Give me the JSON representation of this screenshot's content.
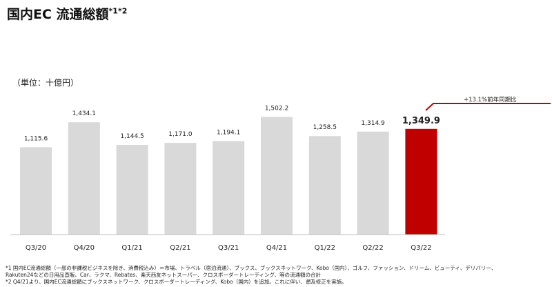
{
  "chart_data": {
    "type": "bar",
    "title": "国内EC 流通総額",
    "title_superscript": "*1*2",
    "unit_label": "（単位：十億円）",
    "categories": [
      "Q3/20",
      "Q4/20",
      "Q1/21",
      "Q2/21",
      "Q3/21",
      "Q4/21",
      "Q1/22",
      "Q2/22",
      "Q3/22"
    ],
    "values": [
      1115.6,
      1434.1,
      1144.5,
      1171.0,
      1194.1,
      1502.2,
      1258.5,
      1314.9,
      1349.9
    ],
    "value_labels": [
      "1,115.6",
      "1,434.1",
      "1,144.5",
      "1,171.0",
      "1,194.1",
      "1,502.2",
      "1,258.5",
      "1,314.9",
      "1,349.9"
    ],
    "highlight_index": 8,
    "annotation": "+13.1%前年同期比",
    "colors": {
      "bar": "#d9d9d9",
      "highlight": "#c00000",
      "annotation_line": "#c00000"
    },
    "grid": false
  },
  "footnotes": [
    "*1 国内EC流通総額（一部の非課税ビジネスを除き、消費税込み）＝市場、トラベル（宿泊流通）、ブックス、ブックスネットワーク、Kobo（国内）、ゴルフ、ファッション、ドリーム、ビューティ、デリバリー、",
    "Rakuten24などの日用品直販、Car、ラクマ、Rebates、楽天西友ネットスーパー、クロスボーダートレーディング、等の流通額の合計",
    "*2 Q4/21より、国内EC流通総額にブックスネットワーク、クロスボーダートレーディング、Kobo（国内）を追加。これに伴い、遡及修正を実施。"
  ]
}
